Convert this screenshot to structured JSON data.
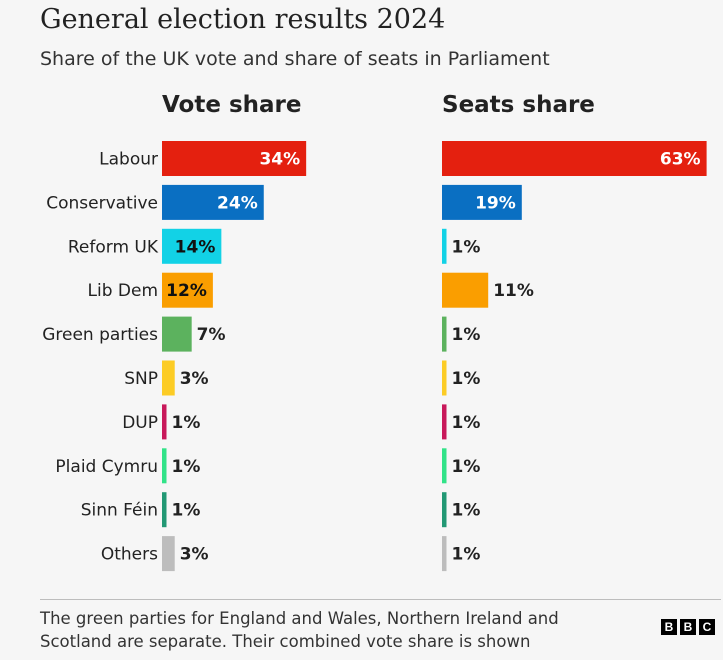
{
  "title": "General election results 2024",
  "subtitle": "Share of the UK vote and share of seats in Parliament",
  "footnote": "The green parties for England and Wales, Northern Ireland and Scotland are separate. Their combined vote share is shown",
  "logo": [
    "B",
    "B",
    "C"
  ],
  "chart_data": [
    {
      "type": "bar",
      "orientation": "horizontal",
      "title": "Vote share",
      "categories": [
        "Labour",
        "Conservative",
        "Reform UK",
        "Lib Dem",
        "Green parties",
        "SNP",
        "DUP",
        "Plaid Cymru",
        "Sinn Féin",
        "Others"
      ],
      "values": [
        34,
        24,
        14,
        12,
        7,
        3,
        1,
        1,
        1,
        3
      ],
      "labels": [
        "34%",
        "24%",
        "14%",
        "12%",
        "7%",
        "3%",
        "1%",
        "1%",
        "1%",
        "3%"
      ],
      "colors": [
        "#e4200f",
        "#0a6fc2",
        "#12d2e6",
        "#fa9e00",
        "#5cb25e",
        "#fccc25",
        "#c8185a",
        "#31e388",
        "#229874",
        "#bdbdbd"
      ],
      "grid": false,
      "legend": "none"
    },
    {
      "type": "bar",
      "orientation": "horizontal",
      "title": "Seats share",
      "categories": [
        "Labour",
        "Conservative",
        "Reform UK",
        "Lib Dem",
        "Green parties",
        "SNP",
        "DUP",
        "Plaid Cymru",
        "Sinn Féin",
        "Others"
      ],
      "values": [
        63,
        19,
        1,
        11,
        1,
        1,
        1,
        1,
        1,
        1
      ],
      "labels": [
        "63%",
        "19%",
        "1%",
        "11%",
        "1%",
        "1%",
        "1%",
        "1%",
        "1%",
        "1%"
      ],
      "colors": [
        "#e4200f",
        "#0a6fc2",
        "#12d2e6",
        "#fa9e00",
        "#5cb25e",
        "#fccc25",
        "#c8185a",
        "#31e388",
        "#229874",
        "#bdbdbd"
      ],
      "grid": false,
      "legend": "none"
    }
  ]
}
